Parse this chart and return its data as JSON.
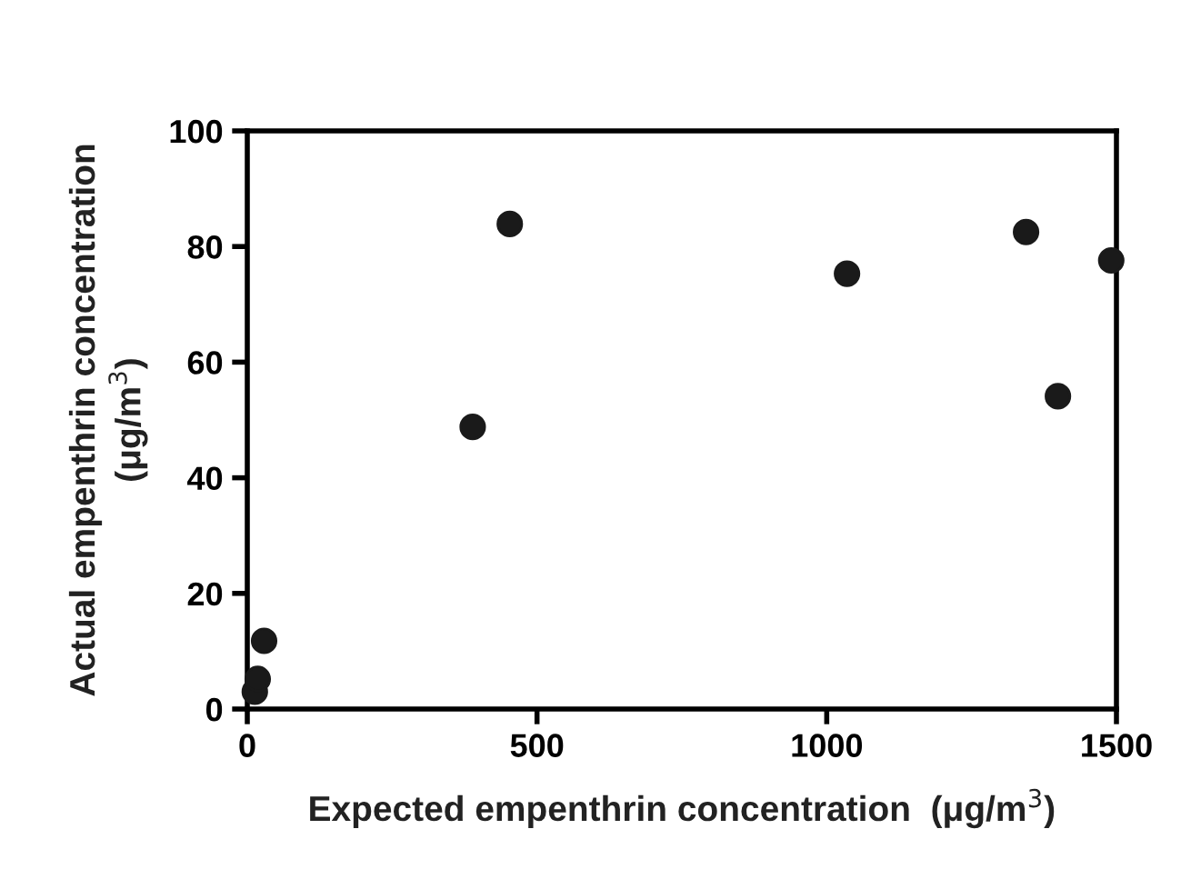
{
  "chart_data": {
    "type": "scatter",
    "xlabel": "Expected empenthrin concentration  (μg/m$^{3}$)",
    "ylabel": "Actual empenthrin concentration\n(μg/m$^{3}$)",
    "series": [
      {
        "color": "#1a1a1a",
        "x": [
          13,
          18,
          29,
          389,
          453,
          1035,
          1344,
          1399,
          1491
        ],
        "values": [
          3.0,
          5.2,
          11.8,
          48.8,
          83.9,
          75.3,
          82.5,
          54.1,
          77.6
        ]
      }
    ],
    "xlim": [
      0,
      1500
    ],
    "xticks": [
      0,
      500,
      1000,
      1500
    ],
    "ylim": [
      0,
      100
    ],
    "yticks": [
      0,
      20,
      40,
      60,
      80,
      100
    ],
    "marker": "circle",
    "grid": false
  }
}
